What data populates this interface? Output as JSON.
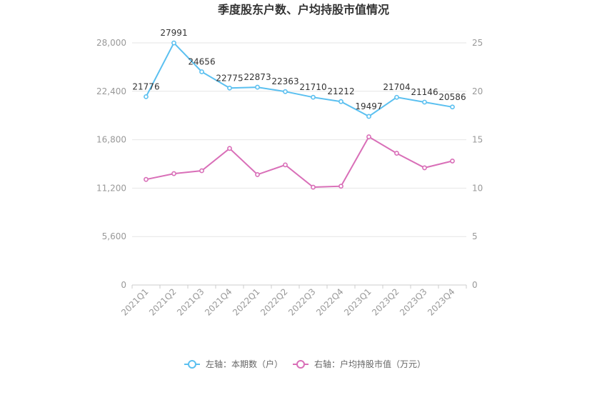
{
  "chart_data": {
    "type": "line",
    "title": "季度股东户数、户均持股市值情况",
    "categories": [
      "2021Q1",
      "2021Q2",
      "2021Q3",
      "2021Q4",
      "2022Q1",
      "2022Q2",
      "2022Q3",
      "2022Q4",
      "2023Q1",
      "2023Q2",
      "2023Q3",
      "2023Q4"
    ],
    "left_axis": {
      "min": 0,
      "max": 28000,
      "ticks": [
        "0",
        "5,600",
        "11,200",
        "16,800",
        "22,400",
        "28,000"
      ],
      "tick_values": [
        0,
        5600,
        11200,
        16800,
        22400,
        28000
      ]
    },
    "right_axis": {
      "min": 0,
      "max": 25,
      "ticks": [
        "0",
        "5",
        "10",
        "15",
        "20",
        "25"
      ],
      "tick_values": [
        0,
        5,
        10,
        15,
        20,
        25
      ]
    },
    "series": [
      {
        "name": "左轴：本期数（户）",
        "axis": "left",
        "color": "#5bc0f0",
        "values": [
          21776,
          27991,
          24656,
          22775,
          22873,
          22363,
          21710,
          21212,
          19497,
          21704,
          21146,
          20586
        ],
        "labels": [
          "21776",
          "27991",
          "24656",
          "22775",
          "22873",
          "22363",
          "21710",
          "21212",
          "19497",
          "21704",
          "21146",
          "20586"
        ]
      },
      {
        "name": "右轴：户均持股市值（万元）",
        "axis": "right",
        "color": "#d96fb8",
        "values": [
          10.9,
          11.5,
          11.8,
          14.1,
          11.4,
          12.4,
          10.1,
          10.2,
          15.3,
          13.6,
          12.1,
          12.8
        ]
      }
    ],
    "legend_position": "bottom-center",
    "grid": true
  }
}
